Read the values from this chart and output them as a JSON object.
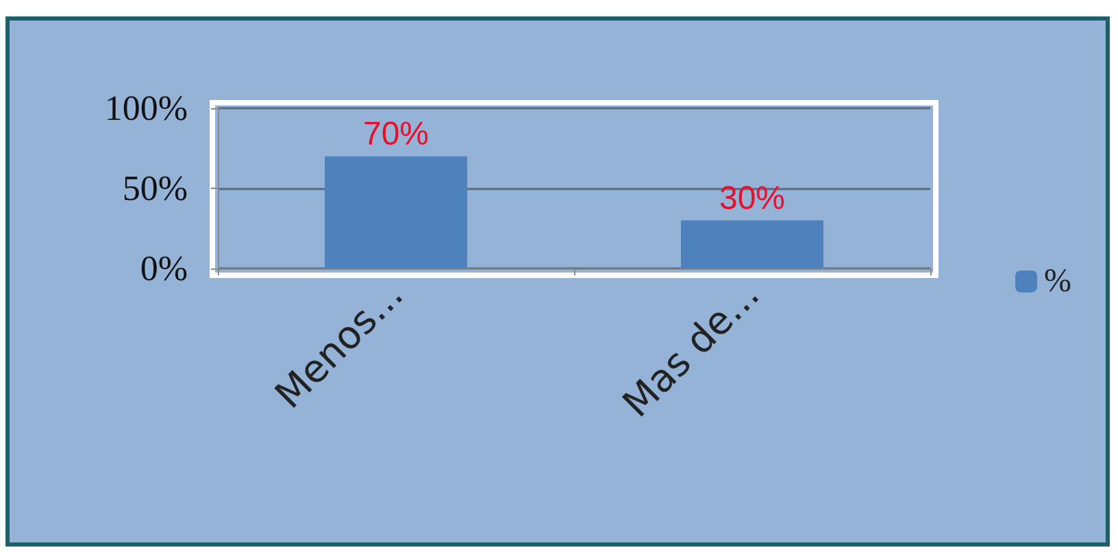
{
  "chart_data": {
    "type": "bar",
    "categories": [
      "Menos...",
      "Mas de..."
    ],
    "series": [
      {
        "name": "%",
        "color": "#4f81bd",
        "values": [
          70,
          30
        ],
        "value_labels": [
          "70%",
          "30%"
        ]
      }
    ],
    "ylim": [
      0,
      100
    ],
    "yticks": [
      {
        "value": 0,
        "label": "0%"
      },
      {
        "value": 50,
        "label": "50%"
      },
      {
        "value": 100,
        "label": "100%"
      }
    ],
    "grid": "y",
    "legend": "right"
  }
}
